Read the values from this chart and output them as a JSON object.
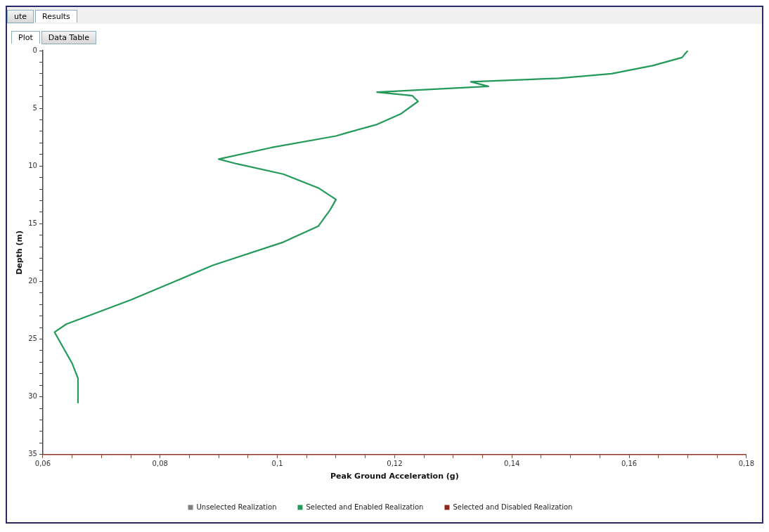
{
  "chart_data": {
    "type": "line",
    "xlabel": "Peak Ground Acceleration (g)",
    "ylabel": "Depth (m)",
    "annotations": [
      "ute",
      "Results",
      "Plot",
      "Data Table"
    ],
    "x": [
      0.17,
      0.169,
      0.164,
      0.157,
      0.148,
      0.133,
      0.136,
      0.117,
      0.123,
      0.124,
      0.121,
      0.117,
      0.112,
      0.11,
      0.099,
      0.09,
      0.093,
      0.101,
      0.107,
      0.11,
      0.109,
      0.107,
      0.101,
      0.089,
      0.083,
      0.075,
      0.064,
      0.062,
      0.065,
      0.066,
      0.066
    ],
    "series": [
      {
        "name": "Unselected Realization",
        "color": "#808080",
        "values": [
          null,
          null,
          null,
          null,
          null,
          null,
          null,
          null,
          null,
          null,
          null,
          null,
          null,
          null,
          null,
          null,
          null,
          null,
          null,
          null,
          null,
          null,
          null,
          null,
          null,
          null,
          null,
          null,
          null,
          null,
          null
        ]
      },
      {
        "name": "Selected and Enabled Realization",
        "color": "#23995a",
        "values": [
          0,
          0.6,
          1.3,
          2.0,
          2.4,
          2.7,
          3.1,
          3.6,
          3.9,
          4.4,
          5.5,
          6.4,
          7.1,
          7.4,
          8.4,
          9.4,
          9.8,
          10.7,
          11.9,
          12.9,
          13.8,
          15.2,
          16.6,
          18.6,
          19.9,
          21.6,
          23.7,
          24.4,
          27.1,
          28.4,
          30.5
        ]
      },
      {
        "name": "Selected and Disabled Realization",
        "color": "#8b2a1a",
        "values": [
          null,
          null,
          null,
          null,
          null,
          null,
          null,
          null,
          null,
          null,
          null,
          null,
          null,
          null,
          null,
          null,
          null,
          null,
          null,
          null,
          null,
          null,
          null,
          null,
          null,
          null,
          null,
          null,
          null,
          null,
          null
        ]
      }
    ],
    "xlim": [
      0.06,
      0.18
    ],
    "xticks": [
      {
        "value": 0.06,
        "label": "0,06"
      },
      {
        "value": 0.065,
        "label": null
      },
      {
        "value": 0.07,
        "label": null
      },
      {
        "value": 0.075,
        "label": null
      },
      {
        "value": 0.08,
        "label": "0,08"
      },
      {
        "value": 0.085,
        "label": null
      },
      {
        "value": 0.09,
        "label": null
      },
      {
        "value": 0.095,
        "label": null
      },
      {
        "value": 0.1,
        "label": "0,1"
      },
      {
        "value": 0.105,
        "label": null
      },
      {
        "value": 0.11,
        "label": null
      },
      {
        "value": 0.115,
        "label": null
      },
      {
        "value": 0.12,
        "label": "0,12"
      },
      {
        "value": 0.125,
        "label": null
      },
      {
        "value": 0.13,
        "label": null
      },
      {
        "value": 0.135,
        "label": null
      },
      {
        "value": 0.14,
        "label": "0,14"
      },
      {
        "value": 0.145,
        "label": null
      },
      {
        "value": 0.15,
        "label": null
      },
      {
        "value": 0.155,
        "label": null
      },
      {
        "value": 0.16,
        "label": "0,16"
      },
      {
        "value": 0.165,
        "label": null
      },
      {
        "value": 0.17,
        "label": null
      },
      {
        "value": 0.175,
        "label": null
      },
      {
        "value": 0.18,
        "label": "0,18"
      }
    ],
    "ylim": [
      35,
      0
    ],
    "yticks": [
      0,
      {
        "value": 1,
        "label": null
      },
      {
        "value": 2,
        "label": null
      },
      {
        "value": 3,
        "label": null
      },
      {
        "value": 4,
        "label": null
      },
      5,
      {
        "value": 6,
        "label": null
      },
      {
        "value": 7,
        "label": null
      },
      {
        "value": 8,
        "label": null
      },
      {
        "value": 9,
        "label": null
      },
      10,
      {
        "value": 11,
        "label": null
      },
      {
        "value": 12,
        "label": null
      },
      {
        "value": 13,
        "label": null
      },
      {
        "value": 14,
        "label": null
      },
      15,
      {
        "value": 16,
        "label": null
      },
      {
        "value": 17,
        "label": null
      },
      {
        "value": 18,
        "label": null
      },
      {
        "value": 19,
        "label": null
      },
      20,
      {
        "value": 21,
        "label": null
      },
      {
        "value": 22,
        "label": null
      },
      {
        "value": 23,
        "label": null
      },
      {
        "value": 24,
        "label": null
      },
      25,
      {
        "value": 26,
        "label": null
      },
      {
        "value": 27,
        "label": null
      },
      {
        "value": 28,
        "label": null
      },
      {
        "value": 29,
        "label": null
      },
      30,
      {
        "value": 31,
        "label": null
      },
      {
        "value": 32,
        "label": null
      },
      {
        "value": 33,
        "label": null
      },
      {
        "value": 34,
        "label": null
      },
      35
    ],
    "grid": false,
    "legend": "bottom",
    "marker": "none",
    "line_style": "solid"
  }
}
